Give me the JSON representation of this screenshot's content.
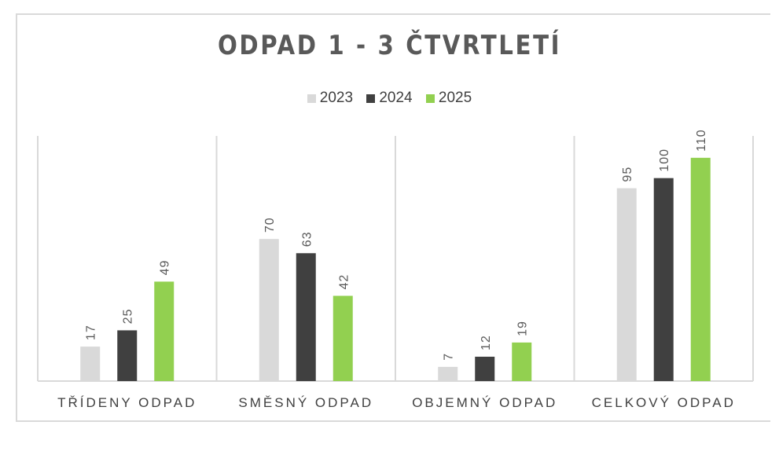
{
  "chart_data": {
    "type": "bar",
    "title": "ODPAD 1 - 3 ČTVRTLETÍ",
    "categories": [
      "TŘÍDENY ODPAD",
      "SMĚSNÝ ODPAD",
      "OBJEMNÝ ODPAD",
      "CELKOVÝ ODPAD"
    ],
    "series": [
      {
        "name": "2023",
        "color": "#d9d9d9",
        "values": [
          17,
          70,
          7,
          95
        ]
      },
      {
        "name": "2024",
        "color": "#404040",
        "values": [
          25,
          63,
          12,
          100
        ]
      },
      {
        "name": "2025",
        "color": "#92d050",
        "values": [
          49,
          42,
          19,
          110
        ]
      }
    ],
    "ylim": [
      0,
      120
    ],
    "legend": "top",
    "grid": "vertical category separators",
    "data_labels": "rotated, above bars"
  }
}
